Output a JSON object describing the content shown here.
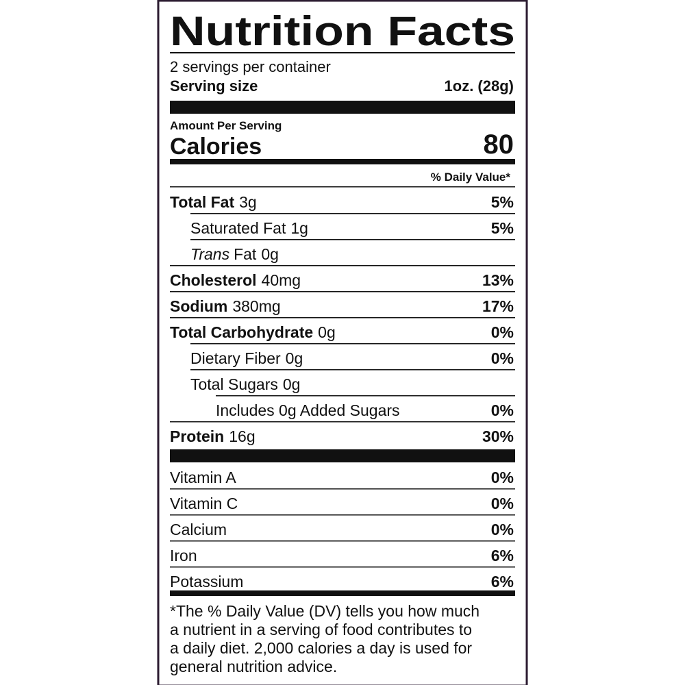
{
  "title": "Nutrition Facts",
  "servings_per_container": "2 servings per container",
  "serving_size": {
    "label": "Serving size",
    "value": "1oz. (28g)"
  },
  "amount_per_serving": "Amount Per Serving",
  "calories": {
    "label": "Calories",
    "value": "80"
  },
  "daily_value_header": "% Daily Value*",
  "nutrients": [
    {
      "name": "Total Fat",
      "amount": "3g",
      "dv": "5%",
      "bold": true,
      "indent": 0
    },
    {
      "name": "Saturated Fat",
      "amount": "1g",
      "dv": "5%",
      "bold": false,
      "indent": 1
    },
    {
      "prefix": "Trans",
      "name": "Fat",
      "amount": "0g",
      "bold": false,
      "indent": 1
    },
    {
      "name": "Cholesterol",
      "amount": "40mg",
      "dv": "13%",
      "bold": true,
      "indent": 0
    },
    {
      "name": "Sodium",
      "amount": "380mg",
      "dv": "17%",
      "bold": true,
      "indent": 0
    },
    {
      "name": "Total Carbohydrate",
      "amount": "0g",
      "dv": "0%",
      "bold": true,
      "indent": 0
    },
    {
      "name": "Dietary Fiber",
      "amount": "0g",
      "dv": "0%",
      "bold": false,
      "indent": 1
    },
    {
      "name": "Total Sugars",
      "amount": "0g",
      "bold": false,
      "indent": 1
    },
    {
      "name": "Includes 0g Added Sugars",
      "dv": "0%",
      "bold": false,
      "indent": 2
    },
    {
      "name": "Protein",
      "amount": "16g",
      "dv": "30%",
      "bold": true,
      "indent": 0
    }
  ],
  "vitamins": [
    {
      "name": "Vitamin A",
      "dv": "0%"
    },
    {
      "name": "Vitamin C",
      "dv": "0%"
    },
    {
      "name": "Calcium",
      "dv": "0%"
    },
    {
      "name": "Iron",
      "dv": "6%"
    },
    {
      "name": "Potassium",
      "dv": "6%"
    }
  ],
  "footnote": [
    "*The % Daily Value (DV) tells you how much",
    "a nutrient in a serving of food contributes to",
    "a daily diet. 2,000 calories a day is used for",
    "general nutrition advice."
  ]
}
